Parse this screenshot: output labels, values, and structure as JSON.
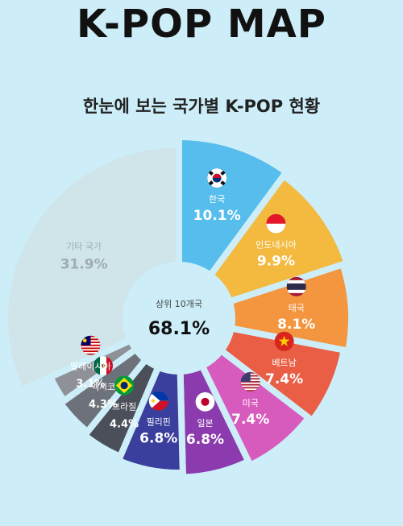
{
  "header": {
    "title": "K-POP MAP",
    "subtitle": "한눈에 보는 국가별 K-POP 현황"
  },
  "center": {
    "label": "상위 10개국",
    "value": "68.1%"
  },
  "colors": {
    "background": "#cdeef8",
    "center_circle": "#cdeef8"
  },
  "chart_data": {
    "type": "pie",
    "donut": true,
    "start": "top, clockwise",
    "categories": [
      "한국",
      "인도네시아",
      "태국",
      "베트남",
      "미국",
      "일본",
      "필리핀",
      "브라질",
      "멕시코",
      "말레이시아",
      "기타 국가"
    ],
    "values": [
      10.1,
      9.9,
      8.1,
      7.4,
      7.4,
      6.8,
      6.8,
      4.4,
      4.3,
      3.1,
      31.9
    ],
    "value_labels": [
      "10.1%",
      "9.9%",
      "8.1%",
      "7.4%",
      "7.4%",
      "6.8%",
      "6.8%",
      "4.4%",
      "4.3%",
      "3.1%",
      "31.9%"
    ],
    "colors": [
      "#56bdec",
      "#f3ba3f",
      "#f4953f",
      "#ea5e45",
      "#d75bbd",
      "#8b3bad",
      "#3a3e9c",
      "#4b4f5a",
      "#6d717a",
      "#8e9197",
      "#cfe5ea"
    ],
    "label_colors": [
      "#ffffff",
      "#ffffff",
      "#ffffff",
      "#ffffff",
      "#ffffff",
      "#ffffff",
      "#ffffff",
      "#ffffff",
      "#ffffff",
      "#ffffff",
      "#a0acaf"
    ],
    "icons": [
      "korea-flag-icon",
      "indonesia-flag-icon",
      "thailand-flag-icon",
      "vietnam-flag-icon",
      "usa-flag-icon",
      "japan-flag-icon",
      "philippines-flag-icon",
      "brazil-flag-icon",
      "mexico-flag-icon",
      "malaysia-flag-icon",
      ""
    ]
  }
}
